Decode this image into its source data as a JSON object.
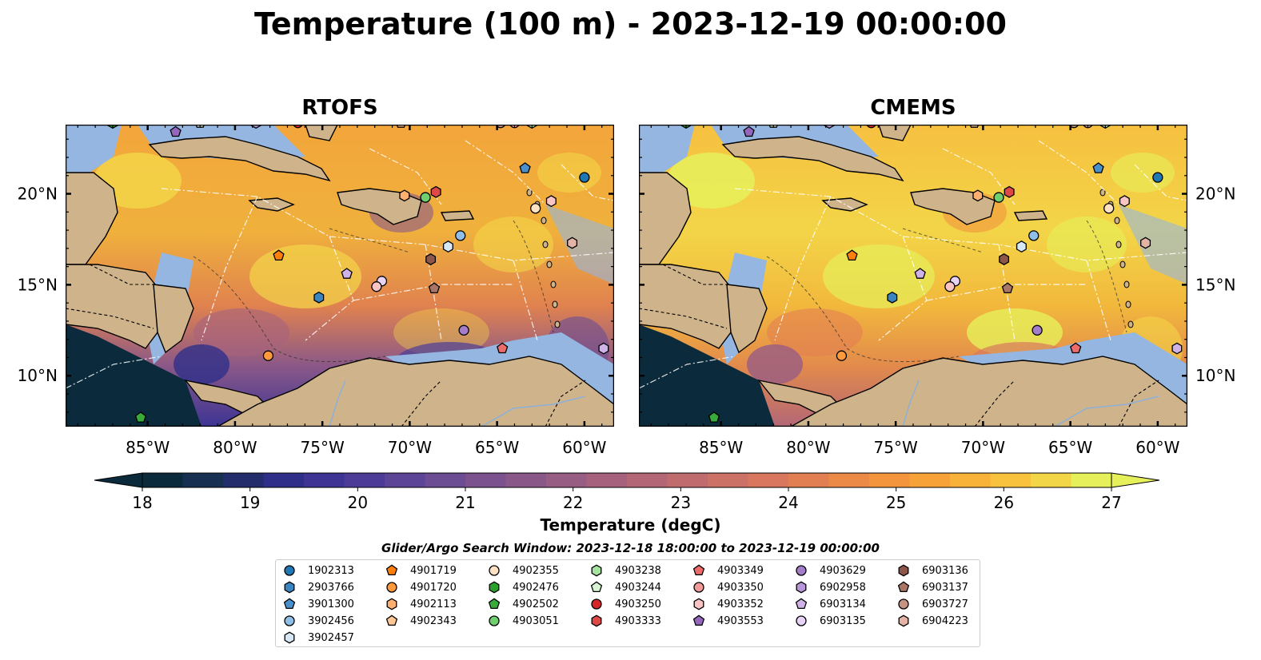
{
  "suptitle": "Temperature (100 m) - 2023-12-19 00:00:00",
  "panels": [
    {
      "title": "RTOFS"
    },
    {
      "title": "CMEMS"
    }
  ],
  "colorbar": {
    "label": "Temperature (degC)",
    "ticks": [
      "18",
      "19",
      "20",
      "21",
      "22",
      "23",
      "24",
      "25",
      "26",
      "27"
    ],
    "min": 18,
    "max": 27,
    "extend": "both",
    "colors": [
      "#0b2a3b",
      "#172f50",
      "#232d6b",
      "#2f2f8a",
      "#3d3494",
      "#4c3c98",
      "#5c4597",
      "#6c4c93",
      "#7b528e",
      "#8a5888",
      "#985d83",
      "#a6627d",
      "#b36776",
      "#c06c6f",
      "#cc7166",
      "#d8775d",
      "#e27f52",
      "#eb8947",
      "#f2953d",
      "#f6a238",
      "#f8b139",
      "#f8c13e",
      "#f3d548",
      "#e6f05a"
    ],
    "under_color": "#0b2a3b",
    "over_color": "#e6f05a"
  },
  "axes": {
    "lon_ticks": [
      "85°W",
      "80°W",
      "75°W",
      "70°W",
      "65°W",
      "60°W"
    ],
    "lat_ticks": [
      "20°N",
      "15°N",
      "10°N"
    ],
    "lon_values": [
      -85,
      -80,
      -75,
      -70,
      -65,
      -60
    ],
    "lat_values": [
      20,
      15,
      10
    ],
    "xlim": [
      -89.7,
      -58.3
    ],
    "ylim": [
      7.2,
      23.8
    ]
  },
  "legend": {
    "title": "Glider/Argo Search Window: 2023-12-18 18:00:00 to 2023-12-19 00:00:00",
    "columns": [
      [
        {
          "id": "1902313",
          "marker": "circle",
          "color": "#1f77b4"
        },
        {
          "id": "2903766",
          "marker": "hexagon",
          "color": "#3a85c0"
        },
        {
          "id": "3901300",
          "marker": "pentagon",
          "color": "#4a90cc"
        },
        {
          "id": "3902456",
          "marker": "circle",
          "color": "#8fbfe6"
        },
        {
          "id": "3902457",
          "marker": "hexagon",
          "color": "#d6e8f5"
        }
      ],
      [
        {
          "id": "4901719",
          "marker": "pentagon",
          "color": "#ff7f0e"
        },
        {
          "id": "4901720",
          "marker": "circle",
          "color": "#ff9a3c"
        },
        {
          "id": "4902113",
          "marker": "hexagon",
          "color": "#ffb070"
        },
        {
          "id": "4902343",
          "marker": "pentagon",
          "color": "#ffc896"
        }
      ],
      [
        {
          "id": "4902355",
          "marker": "circle",
          "color": "#ffe2c4"
        },
        {
          "id": "4902476",
          "marker": "hexagon",
          "color": "#2ca02c"
        },
        {
          "id": "4902502",
          "marker": "pentagon",
          "color": "#3aaa3a"
        },
        {
          "id": "4903051",
          "marker": "circle",
          "color": "#6fcf6f"
        }
      ],
      [
        {
          "id": "4903238",
          "marker": "hexagon",
          "color": "#a6e3a1"
        },
        {
          "id": "4903244",
          "marker": "pentagon",
          "color": "#d8f5d2"
        },
        {
          "id": "4903250",
          "marker": "circle",
          "color": "#d62728"
        },
        {
          "id": "4903333",
          "marker": "hexagon",
          "color": "#e04848"
        }
      ],
      [
        {
          "id": "4903349",
          "marker": "pentagon",
          "color": "#ec6b6b"
        },
        {
          "id": "4903350",
          "marker": "circle",
          "color": "#f39b9b"
        },
        {
          "id": "4903352",
          "marker": "hexagon",
          "color": "#f9c4c4"
        },
        {
          "id": "4903553",
          "marker": "pentagon",
          "color": "#9467bd"
        }
      ],
      [
        {
          "id": "4903629",
          "marker": "circle",
          "color": "#a47ecb"
        },
        {
          "id": "6902958",
          "marker": "hexagon",
          "color": "#b996da"
        },
        {
          "id": "6903134",
          "marker": "pentagon",
          "color": "#cfb3e8"
        },
        {
          "id": "6903135",
          "marker": "circle",
          "color": "#e6d3f5"
        }
      ],
      [
        {
          "id": "6903136",
          "marker": "hexagon",
          "color": "#8c564b"
        },
        {
          "id": "6903137",
          "marker": "pentagon",
          "color": "#a87567"
        },
        {
          "id": "6903727",
          "marker": "circle",
          "color": "#c49384"
        },
        {
          "id": "6904223",
          "marker": "hexagon",
          "color": "#e3b4a6"
        }
      ]
    ]
  },
  "chart_data": {
    "type": "heatmap",
    "variable": "Temperature (degC)",
    "depth": "100 m",
    "time": "2023-12-19 00:00:00",
    "models": [
      "RTOFS",
      "CMEMS"
    ],
    "clim": [
      18,
      27
    ],
    "floats": [
      {
        "id": "1902313",
        "lon": -60.0,
        "lat": 20.9
      },
      {
        "id": "2903766",
        "lon": -75.2,
        "lat": 14.3
      },
      {
        "id": "3901300",
        "lon": -63.4,
        "lat": 21.4
      },
      {
        "id": "3902456",
        "lon": -67.1,
        "lat": 17.7
      },
      {
        "id": "3902457",
        "lon": -67.8,
        "lat": 17.1
      },
      {
        "id": "4901719",
        "lon": -77.5,
        "lat": 16.6
      },
      {
        "id": "4901720",
        "lon": -78.1,
        "lat": 11.1
      },
      {
        "id": "4902113",
        "lon": -70.3,
        "lat": 19.9
      },
      {
        "id": "4902343",
        "lon": -70.5,
        "lat": 23.9
      },
      {
        "id": "4902355",
        "lon": -62.8,
        "lat": 19.2
      },
      {
        "id": "4902476",
        "lon": -87.0,
        "lat": 23.9
      },
      {
        "id": "4902502",
        "lon": -85.4,
        "lat": 7.7
      },
      {
        "id": "4903051",
        "lon": -69.1,
        "lat": 19.8
      },
      {
        "id": "4903238",
        "lon": -63.0,
        "lat": 23.9
      },
      {
        "id": "4903244",
        "lon": -82.0,
        "lat": 23.9
      },
      {
        "id": "4903250",
        "lon": -76.4,
        "lat": 23.9
      },
      {
        "id": "4903333",
        "lon": -68.5,
        "lat": 20.1
      },
      {
        "id": "4903349",
        "lon": -64.7,
        "lat": 11.5
      },
      {
        "id": "4903350",
        "lon": -64.0,
        "lat": 23.9
      },
      {
        "id": "4903352",
        "lon": -61.9,
        "lat": 19.6
      },
      {
        "id": "4903553",
        "lon": -83.4,
        "lat": 23.4
      },
      {
        "id": "4903629",
        "lon": -66.9,
        "lat": 12.5
      },
      {
        "id": "6902958",
        "lon": -78.8,
        "lat": 23.9
      },
      {
        "id": "6903134",
        "lon": -73.6,
        "lat": 15.6
      },
      {
        "id": "6903135",
        "lon": -71.6,
        "lat": 15.2
      },
      {
        "id": "6903136",
        "lon": -68.8,
        "lat": 16.4
      },
      {
        "id": "6903137",
        "lon": -68.6,
        "lat": 14.8
      },
      {
        "id": "6903727",
        "lon": -64.8,
        "lat": 23.9
      },
      {
        "id": "6904223",
        "lon": -60.7,
        "lat": 17.3
      },
      {
        "id": "extra-a",
        "lon": -71.9,
        "lat": 14.9
      },
      {
        "id": "extra-b",
        "lon": -58.9,
        "lat": 11.5
      }
    ]
  }
}
